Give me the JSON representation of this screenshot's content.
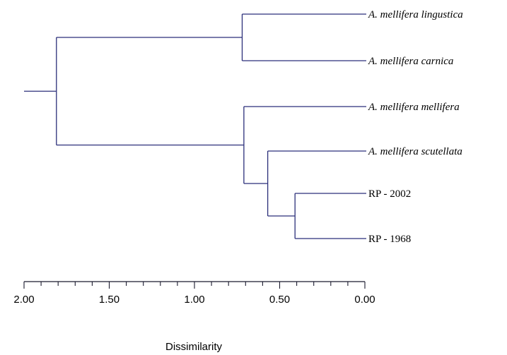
{
  "dendrogram": {
    "axis_title": "Dissimilarity",
    "axis_range": [
      2.0,
      0.0
    ],
    "major_ticks": [
      {
        "value": 2.0,
        "label": "2.00"
      },
      {
        "value": 1.5,
        "label": "1.50"
      },
      {
        "value": 1.0,
        "label": "1.00"
      },
      {
        "value": 0.5,
        "label": "0.50"
      },
      {
        "value": 0.0,
        "label": "0.00"
      }
    ],
    "minor_tick_step": 0.1,
    "line_color": "#2b2f7a",
    "leaves": [
      {
        "id": "lig",
        "label": "A. mellifera lingustica",
        "italic": true
      },
      {
        "id": "car",
        "label": "A. mellifera carnica",
        "italic": true
      },
      {
        "id": "mel",
        "label": "A. mellifera mellifera",
        "italic": true
      },
      {
        "id": "scu",
        "label": "A. mellifera scutellata",
        "italic": true
      },
      {
        "id": "rp2002",
        "label": "RP - 2002",
        "italic": false
      },
      {
        "id": "rp1968",
        "label": "RP - 1968",
        "italic": false
      }
    ],
    "merges": [
      {
        "id": "n1",
        "children": [
          "rp2002",
          "rp1968"
        ],
        "height": 0.41
      },
      {
        "id": "n2",
        "children": [
          "scu",
          "n1"
        ],
        "height": 0.57
      },
      {
        "id": "n3",
        "children": [
          "mel",
          "n2"
        ],
        "height": 0.71
      },
      {
        "id": "n4",
        "children": [
          "lig",
          "car"
        ],
        "height": 0.72
      },
      {
        "id": "n5",
        "children": [
          "n4",
          "n3"
        ],
        "height": 1.81
      }
    ],
    "root_stem_extent": 2.0
  }
}
